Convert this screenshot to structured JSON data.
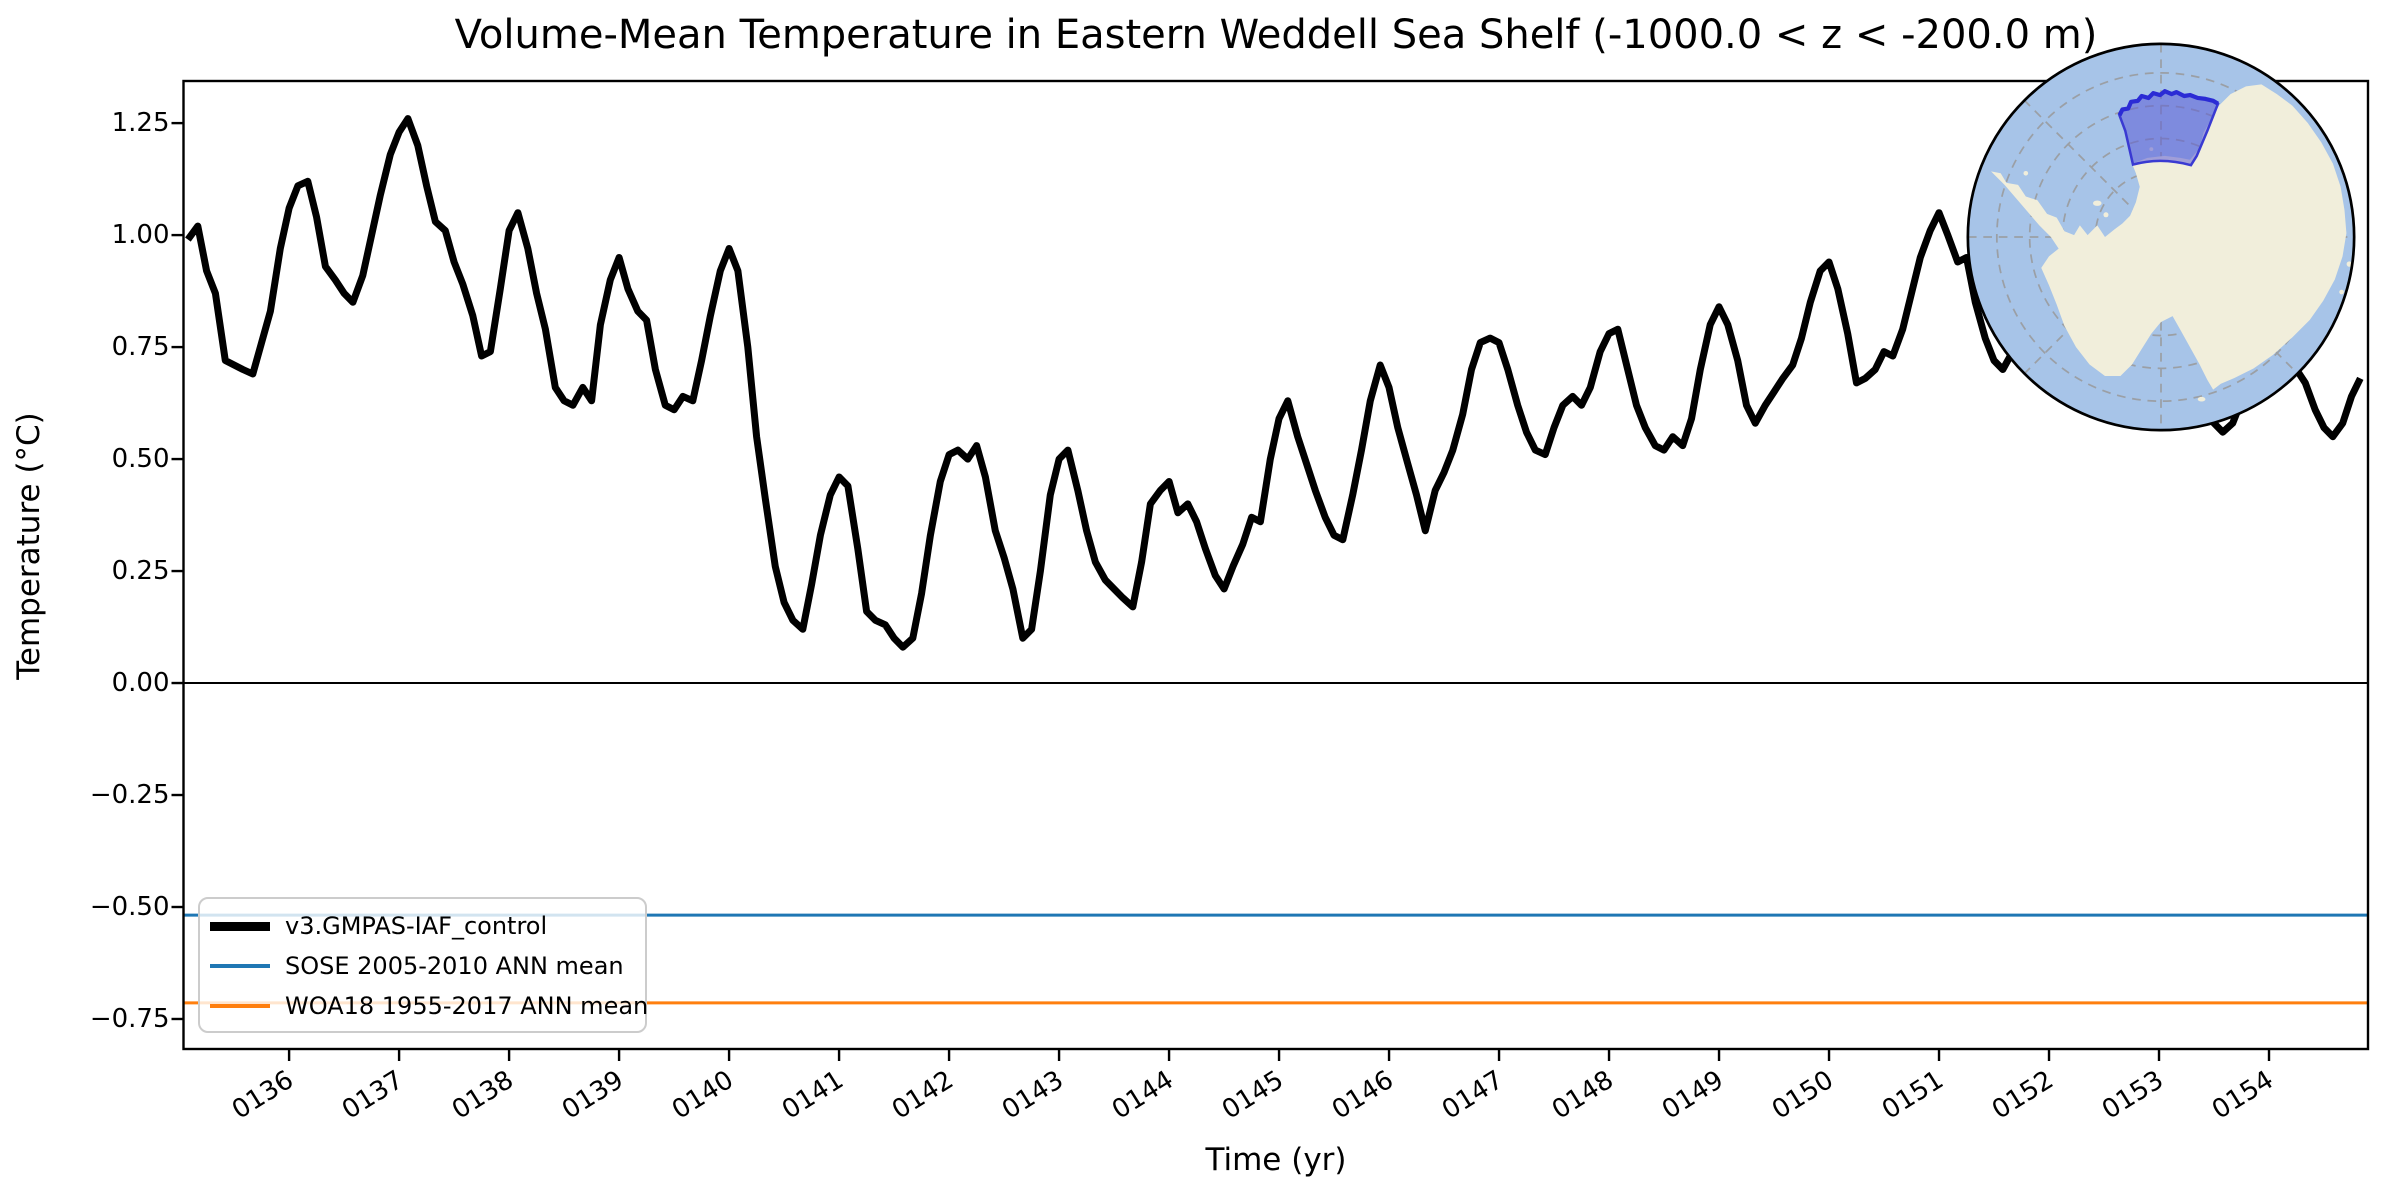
{
  "figure": {
    "title": "Volume-Mean Temperature in Eastern Weddell Sea Shelf (-1000.0 < z < -200.0 m)"
  },
  "axes": {
    "x_label": "Time (yr)",
    "y_label": "Temperature (°C)",
    "x_tick_labels": [
      "0136",
      "0137",
      "0138",
      "0139",
      "0140",
      "0141",
      "0142",
      "0143",
      "0144",
      "0145",
      "0146",
      "0147",
      "0148",
      "0149",
      "0150",
      "0151",
      "0152",
      "0153",
      "0154"
    ],
    "y_tick_labels": [
      "1.25",
      "1.00",
      "0.75",
      "0.50",
      "0.25",
      "0.00",
      "−0.25",
      "−0.50",
      "−0.75"
    ]
  },
  "legend": {
    "items": [
      {
        "label": "v3.GMPAS-IAF_control",
        "color": "#000000"
      },
      {
        "label": "SOSE 2005-2010 ANN mean",
        "color": "#1f77b4"
      },
      {
        "label": "WOA18 1955-2017 ANN mean",
        "color": "#ff7f0e"
      }
    ]
  },
  "chart_data": {
    "type": "line",
    "title": "Volume-Mean Temperature in Eastern Weddell Sea Shelf (-1000.0 < z < -200.0 m)",
    "xlabel": "Time (yr)",
    "ylabel": "Temperature (°C)",
    "xlim": [
      135.04,
      154.9
    ],
    "ylim": [
      -0.817,
      1.344
    ],
    "x_tick_values": [
      136,
      137,
      138,
      139,
      140,
      141,
      142,
      143,
      144,
      145,
      146,
      147,
      148,
      149,
      150,
      151,
      152,
      153,
      154
    ],
    "y_tick_values": [
      1.25,
      1.0,
      0.75,
      0.5,
      0.25,
      0.0,
      -0.25,
      -0.5,
      -0.75
    ],
    "grid": false,
    "legend_position": "lower left",
    "zero_line": 0.0,
    "series": [
      {
        "name": "v3.GMPAS-IAF_control",
        "type": "line",
        "color": "#000000",
        "linewidth": 7,
        "points": [
          [
            135.08,
            0.99
          ],
          [
            135.17,
            1.02
          ],
          [
            135.25,
            0.92
          ],
          [
            135.33,
            0.87
          ],
          [
            135.42,
            0.72
          ],
          [
            135.5,
            0.71
          ],
          [
            135.58,
            0.7
          ],
          [
            135.67,
            0.69
          ],
          [
            135.75,
            0.76
          ],
          [
            135.83,
            0.83
          ],
          [
            135.92,
            0.97
          ],
          [
            136.0,
            1.06
          ],
          [
            136.08,
            1.11
          ],
          [
            136.17,
            1.12
          ],
          [
            136.25,
            1.04
          ],
          [
            136.33,
            0.93
          ],
          [
            136.42,
            0.9
          ],
          [
            136.5,
            0.87
          ],
          [
            136.58,
            0.85
          ],
          [
            136.67,
            0.91
          ],
          [
            136.75,
            1.0
          ],
          [
            136.83,
            1.09
          ],
          [
            136.92,
            1.18
          ],
          [
            137.0,
            1.23
          ],
          [
            137.08,
            1.26
          ],
          [
            137.17,
            1.2
          ],
          [
            137.25,
            1.11
          ],
          [
            137.33,
            1.03
          ],
          [
            137.42,
            1.01
          ],
          [
            137.5,
            0.94
          ],
          [
            137.58,
            0.89
          ],
          [
            137.67,
            0.82
          ],
          [
            137.75,
            0.73
          ],
          [
            137.83,
            0.74
          ],
          [
            137.92,
            0.88
          ],
          [
            138.0,
            1.01
          ],
          [
            138.08,
            1.05
          ],
          [
            138.17,
            0.97
          ],
          [
            138.25,
            0.87
          ],
          [
            138.33,
            0.79
          ],
          [
            138.42,
            0.66
          ],
          [
            138.5,
            0.63
          ],
          [
            138.58,
            0.62
          ],
          [
            138.67,
            0.66
          ],
          [
            138.75,
            0.63
          ],
          [
            138.83,
            0.8
          ],
          [
            138.92,
            0.9
          ],
          [
            139.0,
            0.95
          ],
          [
            139.08,
            0.88
          ],
          [
            139.17,
            0.83
          ],
          [
            139.25,
            0.81
          ],
          [
            139.33,
            0.7
          ],
          [
            139.42,
            0.62
          ],
          [
            139.5,
            0.61
          ],
          [
            139.58,
            0.64
          ],
          [
            139.67,
            0.63
          ],
          [
            139.75,
            0.72
          ],
          [
            139.83,
            0.82
          ],
          [
            139.92,
            0.92
          ],
          [
            140.0,
            0.97
          ],
          [
            140.08,
            0.92
          ],
          [
            140.17,
            0.75
          ],
          [
            140.25,
            0.55
          ],
          [
            140.33,
            0.41
          ],
          [
            140.42,
            0.26
          ],
          [
            140.5,
            0.18
          ],
          [
            140.58,
            0.14
          ],
          [
            140.67,
            0.12
          ],
          [
            140.75,
            0.22
          ],
          [
            140.83,
            0.33
          ],
          [
            140.92,
            0.42
          ],
          [
            141.0,
            0.46
          ],
          [
            141.08,
            0.44
          ],
          [
            141.17,
            0.3
          ],
          [
            141.25,
            0.16
          ],
          [
            141.33,
            0.14
          ],
          [
            141.42,
            0.13
          ],
          [
            141.5,
            0.1
          ],
          [
            141.58,
            0.08
          ],
          [
            141.67,
            0.1
          ],
          [
            141.75,
            0.2
          ],
          [
            141.83,
            0.33
          ],
          [
            141.92,
            0.45
          ],
          [
            142.0,
            0.51
          ],
          [
            142.08,
            0.52
          ],
          [
            142.17,
            0.5
          ],
          [
            142.25,
            0.53
          ],
          [
            142.33,
            0.46
          ],
          [
            142.42,
            0.34
          ],
          [
            142.5,
            0.28
          ],
          [
            142.58,
            0.21
          ],
          [
            142.67,
            0.1
          ],
          [
            142.75,
            0.12
          ],
          [
            142.83,
            0.25
          ],
          [
            142.92,
            0.42
          ],
          [
            143.0,
            0.5
          ],
          [
            143.08,
            0.52
          ],
          [
            143.17,
            0.43
          ],
          [
            143.25,
            0.34
          ],
          [
            143.33,
            0.27
          ],
          [
            143.42,
            0.23
          ],
          [
            143.5,
            0.21
          ],
          [
            143.58,
            0.19
          ],
          [
            143.67,
            0.17
          ],
          [
            143.75,
            0.27
          ],
          [
            143.83,
            0.4
          ],
          [
            143.92,
            0.43
          ],
          [
            144.0,
            0.45
          ],
          [
            144.08,
            0.38
          ],
          [
            144.17,
            0.4
          ],
          [
            144.25,
            0.36
          ],
          [
            144.33,
            0.3
          ],
          [
            144.42,
            0.24
          ],
          [
            144.5,
            0.21
          ],
          [
            144.58,
            0.26
          ],
          [
            144.67,
            0.31
          ],
          [
            144.75,
            0.37
          ],
          [
            144.83,
            0.36
          ],
          [
            144.92,
            0.5
          ],
          [
            145.0,
            0.59
          ],
          [
            145.08,
            0.63
          ],
          [
            145.17,
            0.55
          ],
          [
            145.25,
            0.49
          ],
          [
            145.33,
            0.43
          ],
          [
            145.42,
            0.37
          ],
          [
            145.5,
            0.33
          ],
          [
            145.58,
            0.32
          ],
          [
            145.67,
            0.42
          ],
          [
            145.75,
            0.52
          ],
          [
            145.83,
            0.63
          ],
          [
            145.92,
            0.71
          ],
          [
            146.0,
            0.66
          ],
          [
            146.08,
            0.57
          ],
          [
            146.17,
            0.49
          ],
          [
            146.25,
            0.42
          ],
          [
            146.33,
            0.34
          ],
          [
            146.42,
            0.43
          ],
          [
            146.5,
            0.47
          ],
          [
            146.58,
            0.52
          ],
          [
            146.67,
            0.6
          ],
          [
            146.75,
            0.7
          ],
          [
            146.83,
            0.76
          ],
          [
            146.92,
            0.77
          ],
          [
            147.0,
            0.76
          ],
          [
            147.08,
            0.7
          ],
          [
            147.17,
            0.62
          ],
          [
            147.25,
            0.56
          ],
          [
            147.33,
            0.52
          ],
          [
            147.42,
            0.51
          ],
          [
            147.5,
            0.57
          ],
          [
            147.58,
            0.62
          ],
          [
            147.67,
            0.64
          ],
          [
            147.75,
            0.62
          ],
          [
            147.83,
            0.66
          ],
          [
            147.92,
            0.74
          ],
          [
            148.0,
            0.78
          ],
          [
            148.08,
            0.79
          ],
          [
            148.17,
            0.7
          ],
          [
            148.25,
            0.62
          ],
          [
            148.33,
            0.57
          ],
          [
            148.42,
            0.53
          ],
          [
            148.5,
            0.52
          ],
          [
            148.58,
            0.55
          ],
          [
            148.67,
            0.53
          ],
          [
            148.75,
            0.59
          ],
          [
            148.83,
            0.7
          ],
          [
            148.92,
            0.8
          ],
          [
            149.0,
            0.84
          ],
          [
            149.08,
            0.8
          ],
          [
            149.17,
            0.72
          ],
          [
            149.25,
            0.62
          ],
          [
            149.33,
            0.58
          ],
          [
            149.42,
            0.62
          ],
          [
            149.5,
            0.65
          ],
          [
            149.58,
            0.68
          ],
          [
            149.67,
            0.71
          ],
          [
            149.75,
            0.77
          ],
          [
            149.83,
            0.85
          ],
          [
            149.92,
            0.92
          ],
          [
            150.0,
            0.94
          ],
          [
            150.08,
            0.88
          ],
          [
            150.17,
            0.78
          ],
          [
            150.25,
            0.67
          ],
          [
            150.33,
            0.68
          ],
          [
            150.42,
            0.7
          ],
          [
            150.5,
            0.74
          ],
          [
            150.58,
            0.73
          ],
          [
            150.67,
            0.79
          ],
          [
            150.75,
            0.87
          ],
          [
            150.83,
            0.95
          ],
          [
            150.92,
            1.01
          ],
          [
            151.0,
            1.05
          ],
          [
            151.08,
            1.0
          ],
          [
            151.17,
            0.94
          ],
          [
            151.25,
            0.95
          ],
          [
            151.33,
            0.85
          ],
          [
            151.42,
            0.77
          ],
          [
            151.5,
            0.72
          ],
          [
            151.58,
            0.7
          ],
          [
            151.67,
            0.74
          ],
          [
            151.75,
            0.82
          ],
          [
            151.83,
            0.9
          ],
          [
            151.92,
            0.96
          ],
          [
            152.0,
            1.0
          ],
          [
            152.08,
            0.97
          ],
          [
            152.17,
            0.9
          ],
          [
            152.25,
            0.8
          ],
          [
            152.33,
            0.72
          ],
          [
            152.42,
            0.68
          ],
          [
            152.5,
            0.65
          ],
          [
            152.58,
            0.68
          ],
          [
            152.67,
            0.74
          ],
          [
            152.75,
            0.81
          ],
          [
            152.83,
            0.88
          ],
          [
            152.92,
            0.93
          ],
          [
            153.0,
            0.95
          ],
          [
            153.08,
            0.9
          ],
          [
            153.17,
            0.82
          ],
          [
            153.25,
            0.74
          ],
          [
            153.33,
            0.68
          ],
          [
            153.42,
            0.62
          ],
          [
            153.5,
            0.58
          ],
          [
            153.58,
            0.56
          ],
          [
            153.67,
            0.58
          ],
          [
            153.75,
            0.63
          ],
          [
            153.83,
            0.69
          ],
          [
            153.92,
            0.74
          ],
          [
            154.0,
            0.77
          ],
          [
            154.08,
            0.75
          ],
          [
            154.17,
            0.72
          ],
          [
            154.25,
            0.7
          ],
          [
            154.33,
            0.67
          ],
          [
            154.42,
            0.61
          ],
          [
            154.5,
            0.57
          ],
          [
            154.58,
            0.55
          ],
          [
            154.67,
            0.58
          ],
          [
            154.75,
            0.64
          ],
          [
            154.83,
            0.68
          ]
        ]
      },
      {
        "name": "SOSE 2005-2010 ANN mean",
        "type": "hline",
        "color": "#1f77b4",
        "linewidth": 3,
        "value": -0.518
      },
      {
        "name": "WOA18 1955-2017 ANN mean",
        "type": "hline",
        "color": "#ff7f0e",
        "linewidth": 3,
        "value": -0.714
      }
    ]
  },
  "inset_map": {
    "colors": {
      "ocean": "#a7c4e8",
      "land": "#f1eedb",
      "region_fill": "rgba(92,92,214,0.55)",
      "region_edge": "#3a3ad2",
      "region_top_edge": "#2b2bd5",
      "grid": "#999999",
      "outline": "#000000"
    }
  }
}
